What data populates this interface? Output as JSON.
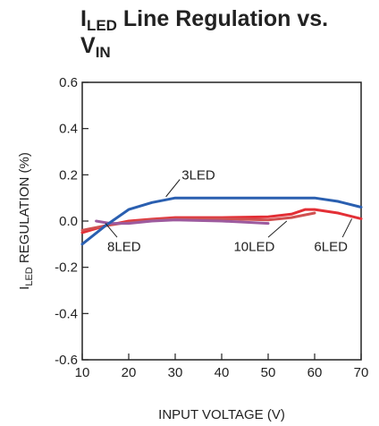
{
  "chart_data": {
    "type": "line",
    "title": {
      "main_a": "I",
      "main_sub": "LED",
      "main_b": " Line Regulation vs.",
      "line2_a": "V",
      "line2_sub": "IN"
    },
    "xlabel": "INPUT VOLTAGE (V)",
    "ylabel": {
      "a": "I",
      "sub": "LED",
      "b": " REGULATION (%)"
    },
    "xlim": [
      10,
      70
    ],
    "ylim": [
      -0.6,
      0.6
    ],
    "xticks": [
      "10",
      "20",
      "30",
      "40",
      "50",
      "60",
      "70"
    ],
    "yticks": [
      "0.6",
      "0.4",
      "0.2",
      "0.0",
      "-0.2",
      "-0.4",
      "-0.6"
    ],
    "grid": false,
    "colors": {
      "3LED": "#2a5fb0",
      "6LED": "#e32f36",
      "8LED": "#d05050",
      "10LED": "#9d5a9e"
    },
    "series": [
      {
        "name": "3LED",
        "x": [
          10,
          15,
          20,
          25,
          30,
          40,
          50,
          55,
          60,
          65,
          70
        ],
        "y": [
          -0.1,
          -0.02,
          0.05,
          0.08,
          0.1,
          0.1,
          0.1,
          0.1,
          0.1,
          0.085,
          0.06
        ]
      },
      {
        "name": "6LED",
        "x": [
          10,
          15,
          20,
          25,
          30,
          40,
          50,
          55,
          58,
          60,
          65,
          70
        ],
        "y": [
          -0.05,
          -0.02,
          0.0,
          0.008,
          0.015,
          0.015,
          0.018,
          0.03,
          0.05,
          0.05,
          0.035,
          0.01
        ]
      },
      {
        "name": "8LED",
        "x": [
          10,
          15,
          20,
          25,
          30,
          40,
          50,
          55,
          60
        ],
        "y": [
          -0.04,
          -0.02,
          -0.005,
          0.005,
          0.01,
          0.01,
          0.005,
          0.015,
          0.035
        ]
      },
      {
        "name": "10LED",
        "x": [
          13,
          16,
          20,
          25,
          30,
          40,
          45,
          50
        ],
        "y": [
          0.0,
          -0.01,
          -0.01,
          0.0,
          0.005,
          0.0,
          -0.005,
          -0.01
        ]
      }
    ],
    "annotations": [
      {
        "text": "3LED",
        "x": 35,
        "y": 0.2,
        "series": "3LED"
      },
      {
        "text": "8LED",
        "x": 19,
        "y": -0.11,
        "series": "8LED"
      },
      {
        "text": "10LED",
        "x": 47,
        "y": -0.11,
        "series": "10LED"
      },
      {
        "text": "6LED",
        "x": 63.5,
        "y": -0.11,
        "series": "6LED"
      }
    ]
  }
}
